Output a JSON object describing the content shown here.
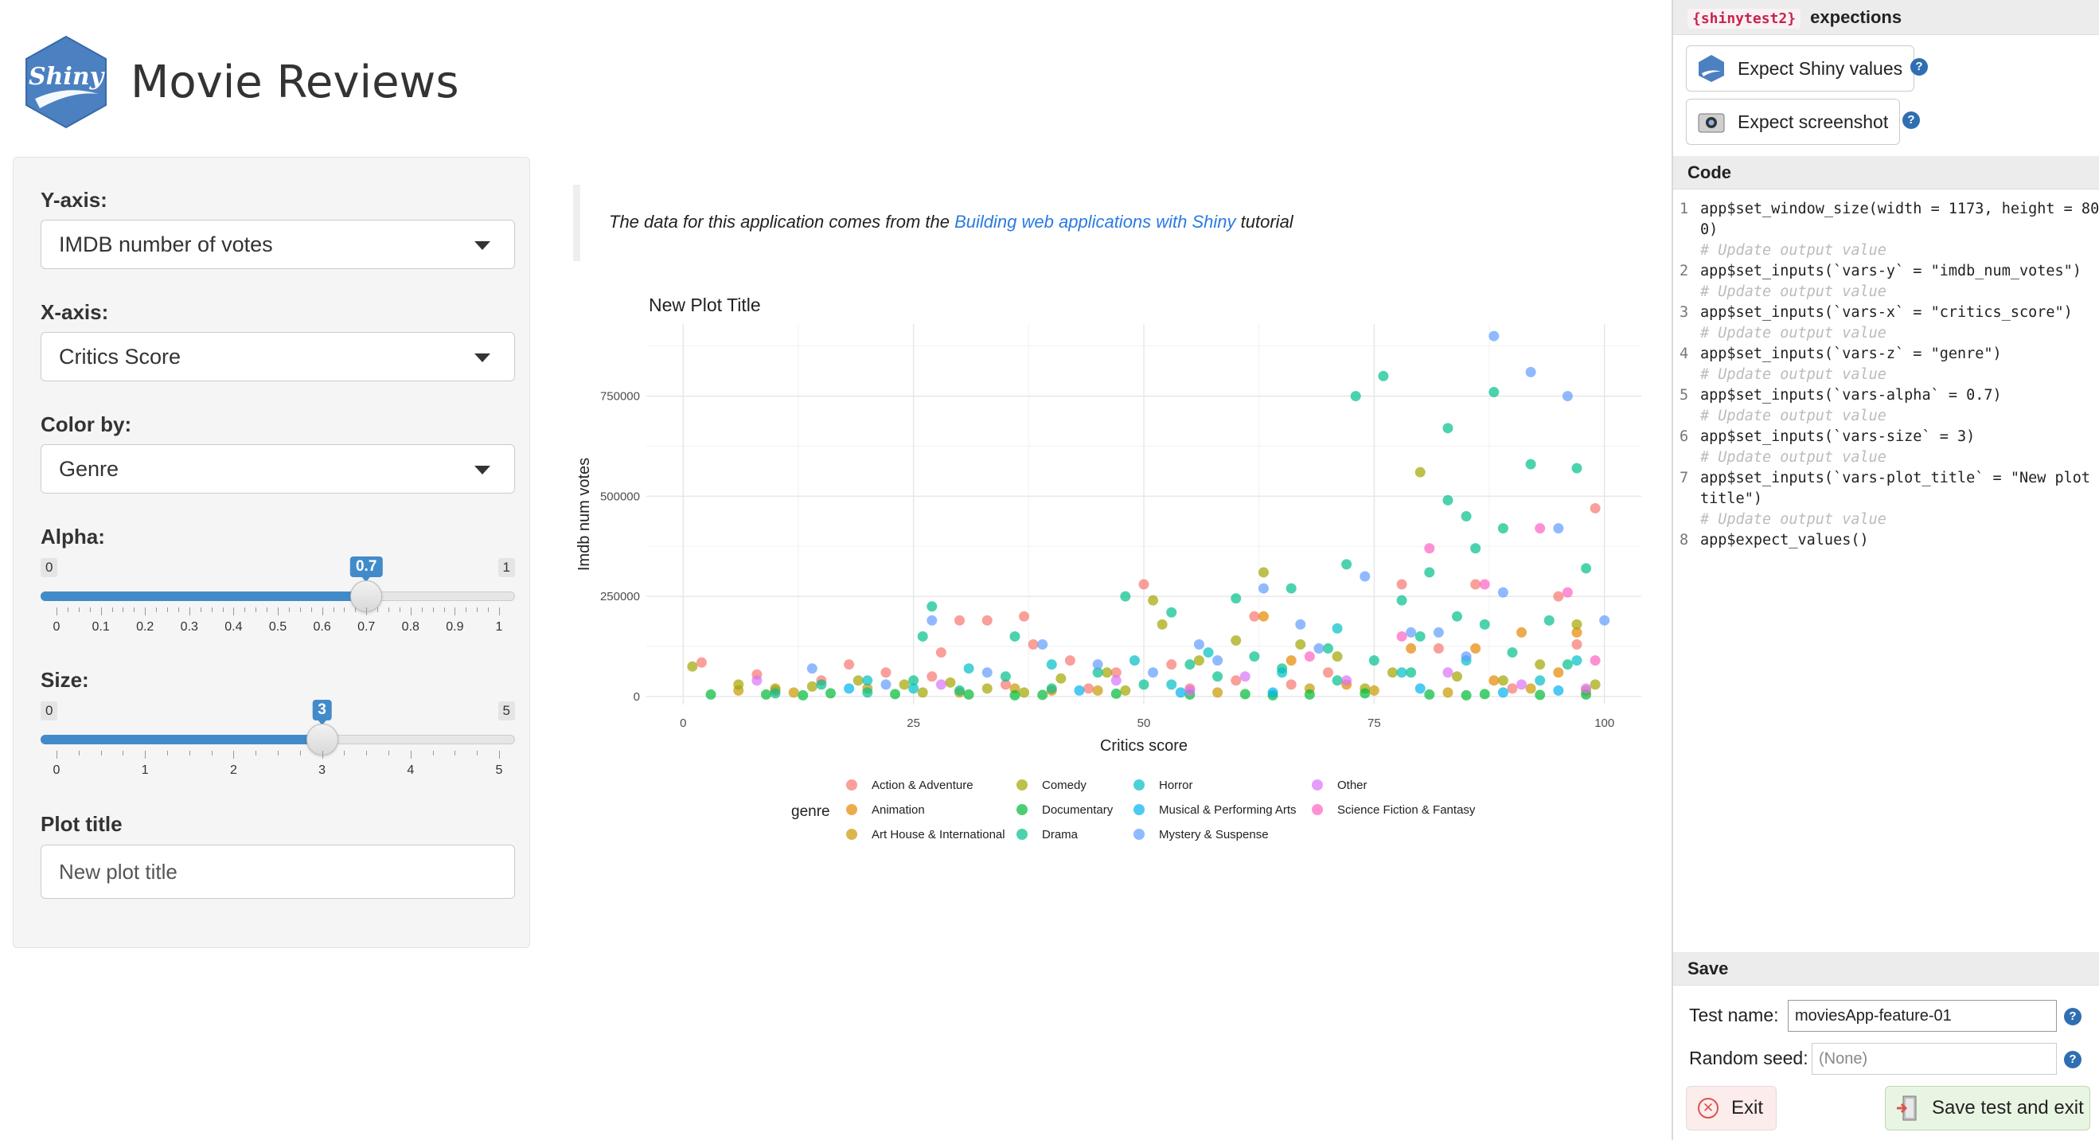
{
  "header": {
    "logo_text": "Shiny",
    "title": "Movie Reviews"
  },
  "sidebar": {
    "yaxis": {
      "label": "Y-axis:",
      "value": "IMDB number of votes"
    },
    "xaxis": {
      "label": "X-axis:",
      "value": "Critics Score"
    },
    "color": {
      "label": "Color by:",
      "value": "Genre"
    },
    "alpha": {
      "label": "Alpha:",
      "min": "0",
      "max": "1",
      "value": "0.7",
      "fraction": 0.7,
      "ticks": [
        "0",
        "0.1",
        "0.2",
        "0.3",
        "0.4",
        "0.5",
        "0.6",
        "0.7",
        "0.8",
        "0.9",
        "1"
      ]
    },
    "size": {
      "label": "Size:",
      "min": "0",
      "max": "5",
      "value": "3",
      "fraction": 0.6,
      "ticks": [
        "0",
        "1",
        "2",
        "3",
        "4",
        "5"
      ]
    },
    "plot_title": {
      "label": "Plot title",
      "value": "New plot title"
    }
  },
  "main": {
    "note_prefix": "The data for this application comes from the ",
    "note_link": "Building web applications with Shiny",
    "note_suffix": " tutorial"
  },
  "chart_data": {
    "type": "scatter",
    "title": "New Plot Title",
    "xlabel": "Critics score",
    "ylabel": "Imdb num votes",
    "xlim": [
      -4,
      104
    ],
    "ylim": [
      -20000,
      930000
    ],
    "x_ticks": [
      0,
      25,
      50,
      75,
      100
    ],
    "y_ticks": [
      0,
      250000,
      500000,
      750000
    ],
    "x_tick_labels": [
      "0",
      "25",
      "50",
      "75",
      "100"
    ],
    "y_tick_labels": [
      "0",
      "250000",
      "500000",
      "750000"
    ],
    "grid": true,
    "legend_title": "genre",
    "legend_position": "bottom",
    "series": [
      {
        "name": "Action & Adventure",
        "color": "#F8766D",
        "points": [
          [
            2,
            85000
          ],
          [
            8,
            55000
          ],
          [
            15,
            40000
          ],
          [
            18,
            80000
          ],
          [
            22,
            60000
          ],
          [
            28,
            110000
          ],
          [
            30,
            190000
          ],
          [
            33,
            190000
          ],
          [
            37,
            200000
          ],
          [
            38,
            130000
          ],
          [
            42,
            90000
          ],
          [
            47,
            60000
          ],
          [
            50,
            280000
          ],
          [
            53,
            80000
          ],
          [
            62,
            200000
          ],
          [
            70,
            60000
          ],
          [
            78,
            280000
          ],
          [
            82,
            120000
          ],
          [
            86,
            280000
          ],
          [
            95,
            250000
          ],
          [
            99,
            470000
          ],
          [
            97,
            130000
          ],
          [
            60,
            40000
          ],
          [
            44,
            20000
          ],
          [
            10,
            15000
          ],
          [
            27,
            50000
          ],
          [
            35,
            30000
          ],
          [
            55,
            20000
          ],
          [
            66,
            30000
          ],
          [
            90,
            20000
          ]
        ]
      },
      {
        "name": "Animation",
        "color": "#E58700",
        "points": [
          [
            40,
            15000
          ],
          [
            63,
            200000
          ],
          [
            66,
            90000
          ],
          [
            79,
            120000
          ],
          [
            86,
            120000
          ],
          [
            91,
            160000
          ],
          [
            97,
            160000
          ],
          [
            88,
            40000
          ],
          [
            72,
            30000
          ],
          [
            95,
            60000
          ]
        ]
      },
      {
        "name": "Art House & International",
        "color": "#C99800",
        "points": [
          [
            6,
            15000
          ],
          [
            12,
            10000
          ],
          [
            20,
            20000
          ],
          [
            30,
            10000
          ],
          [
            45,
            15000
          ],
          [
            58,
            10000
          ],
          [
            68,
            20000
          ],
          [
            75,
            15000
          ],
          [
            83,
            10000
          ],
          [
            92,
            20000
          ],
          [
            98,
            15000
          ],
          [
            36,
            20000
          ]
        ]
      },
      {
        "name": "Comedy",
        "color": "#A3A500",
        "points": [
          [
            1,
            75000
          ],
          [
            6,
            30000
          ],
          [
            10,
            20000
          ],
          [
            14,
            25000
          ],
          [
            19,
            40000
          ],
          [
            24,
            30000
          ],
          [
            29,
            35000
          ],
          [
            33,
            20000
          ],
          [
            41,
            45000
          ],
          [
            46,
            60000
          ],
          [
            51,
            240000
          ],
          [
            52,
            180000
          ],
          [
            56,
            90000
          ],
          [
            60,
            140000
          ],
          [
            63,
            310000
          ],
          [
            67,
            130000
          ],
          [
            71,
            100000
          ],
          [
            77,
            60000
          ],
          [
            80,
            560000
          ],
          [
            84,
            50000
          ],
          [
            89,
            40000
          ],
          [
            93,
            80000
          ],
          [
            97,
            180000
          ],
          [
            99,
            30000
          ],
          [
            48,
            15000
          ],
          [
            26,
            10000
          ],
          [
            37,
            10000
          ],
          [
            74,
            20000
          ]
        ]
      },
      {
        "name": "Documentary",
        "color": "#00BA38",
        "points": [
          [
            3,
            5000
          ],
          [
            9,
            5000
          ],
          [
            16,
            8000
          ],
          [
            23,
            6000
          ],
          [
            31,
            5000
          ],
          [
            39,
            4000
          ],
          [
            47,
            7000
          ],
          [
            55,
            5000
          ],
          [
            61,
            6000
          ],
          [
            68,
            5000
          ],
          [
            74,
            8000
          ],
          [
            81,
            5000
          ],
          [
            87,
            6000
          ],
          [
            93,
            4000
          ],
          [
            98,
            5000
          ],
          [
            13,
            3000
          ],
          [
            36,
            3000
          ],
          [
            64,
            3000
          ],
          [
            85,
            3000
          ]
        ]
      },
      {
        "name": "Drama",
        "color": "#00C08B",
        "points": [
          [
            27,
            225000
          ],
          [
            26,
            150000
          ],
          [
            36,
            150000
          ],
          [
            48,
            250000
          ],
          [
            53,
            210000
          ],
          [
            60,
            245000
          ],
          [
            66,
            270000
          ],
          [
            72,
            330000
          ],
          [
            73,
            750000
          ],
          [
            76,
            800000
          ],
          [
            78,
            240000
          ],
          [
            81,
            310000
          ],
          [
            83,
            670000
          ],
          [
            83,
            490000
          ],
          [
            85,
            450000
          ],
          [
            86,
            370000
          ],
          [
            88,
            760000
          ],
          [
            89,
            420000
          ],
          [
            92,
            580000
          ],
          [
            97,
            570000
          ],
          [
            98,
            320000
          ],
          [
            94,
            190000
          ],
          [
            87,
            180000
          ],
          [
            80,
            150000
          ],
          [
            70,
            120000
          ],
          [
            62,
            100000
          ],
          [
            55,
            80000
          ],
          [
            45,
            60000
          ],
          [
            35,
            50000
          ],
          [
            25,
            40000
          ],
          [
            15,
            30000
          ],
          [
            58,
            50000
          ],
          [
            65,
            70000
          ],
          [
            75,
            90000
          ],
          [
            90,
            110000
          ],
          [
            96,
            80000
          ],
          [
            84,
            200000
          ],
          [
            79,
            60000
          ],
          [
            71,
            40000
          ],
          [
            50,
            30000
          ],
          [
            40,
            20000
          ],
          [
            30,
            15000
          ],
          [
            20,
            10000
          ],
          [
            10,
            8000
          ]
        ]
      },
      {
        "name": "Horror",
        "color": "#00BFC4",
        "points": [
          [
            20,
            40000
          ],
          [
            31,
            70000
          ],
          [
            40,
            80000
          ],
          [
            49,
            90000
          ],
          [
            57,
            110000
          ],
          [
            65,
            60000
          ],
          [
            71,
            170000
          ],
          [
            78,
            60000
          ],
          [
            85,
            90000
          ],
          [
            93,
            40000
          ],
          [
            97,
            90000
          ],
          [
            53,
            30000
          ],
          [
            25,
            20000
          ]
        ]
      },
      {
        "name": "Musical & Performing Arts",
        "color": "#00B4F0",
        "points": [
          [
            18,
            20000
          ],
          [
            43,
            15000
          ],
          [
            64,
            10000
          ],
          [
            80,
            20000
          ],
          [
            89,
            10000
          ],
          [
            95,
            15000
          ],
          [
            54,
            10000
          ]
        ]
      },
      {
        "name": "Mystery & Suspense",
        "color": "#619CFF",
        "points": [
          [
            14,
            70000
          ],
          [
            27,
            190000
          ],
          [
            39,
            130000
          ],
          [
            45,
            80000
          ],
          [
            51,
            60000
          ],
          [
            56,
            130000
          ],
          [
            63,
            270000
          ],
          [
            67,
            180000
          ],
          [
            74,
            300000
          ],
          [
            79,
            160000
          ],
          [
            85,
            100000
          ],
          [
            88,
            900000
          ],
          [
            92,
            810000
          ],
          [
            96,
            750000
          ],
          [
            95,
            420000
          ],
          [
            89,
            260000
          ],
          [
            82,
            160000
          ],
          [
            69,
            120000
          ],
          [
            58,
            90000
          ],
          [
            33,
            60000
          ],
          [
            22,
            30000
          ],
          [
            100,
            190000
          ]
        ]
      },
      {
        "name": "Other",
        "color": "#DB72FB",
        "points": [
          [
            8,
            40000
          ],
          [
            28,
            30000
          ],
          [
            47,
            40000
          ],
          [
            61,
            50000
          ],
          [
            72,
            40000
          ],
          [
            83,
            60000
          ],
          [
            91,
            30000
          ],
          [
            98,
            20000
          ],
          [
            55,
            15000
          ]
        ]
      },
      {
        "name": "Science Fiction & Fantasy",
        "color": "#FF61C3",
        "points": [
          [
            81,
            370000
          ],
          [
            87,
            280000
          ],
          [
            96,
            260000
          ],
          [
            93,
            420000
          ],
          [
            78,
            150000
          ],
          [
            68,
            100000
          ],
          [
            99,
            90000
          ]
        ]
      }
    ]
  },
  "panel": {
    "tag": "{shinytest2}",
    "heading": "expections",
    "expect_values": "Expect Shiny values",
    "expect_screenshot": "Expect screenshot",
    "help": "?",
    "code_heading": "Code",
    "code_lines": [
      {
        "n": "1",
        "text": "app$set_window_size(width = 1173, height = 80",
        "cont": "0)"
      },
      {
        "n": "",
        "comment": "# Update output value"
      },
      {
        "n": "2",
        "text": "app$set_inputs(`vars-y` = \"imdb_num_votes\")"
      },
      {
        "n": "",
        "comment": "# Update output value"
      },
      {
        "n": "3",
        "text": "app$set_inputs(`vars-x` = \"critics_score\")"
      },
      {
        "n": "",
        "comment": "# Update output value"
      },
      {
        "n": "4",
        "text": "app$set_inputs(`vars-z` = \"genre\")"
      },
      {
        "n": "",
        "comment": "# Update output value"
      },
      {
        "n": "5",
        "text": "app$set_inputs(`vars-alpha` = 0.7)"
      },
      {
        "n": "",
        "comment": "# Update output value"
      },
      {
        "n": "6",
        "text": "app$set_inputs(`vars-size` = 3)"
      },
      {
        "n": "",
        "comment": "# Update output value"
      },
      {
        "n": "7",
        "text": "app$set_inputs(`vars-plot_title` = \"New plot",
        "cont": "title\")"
      },
      {
        "n": "",
        "comment": "# Update output value"
      },
      {
        "n": "8",
        "text": "app$expect_values()"
      }
    ],
    "save_heading": "Save",
    "test_name_label": "Test name:",
    "test_name_value": "moviesApp-feature-01",
    "seed_label": "Random seed:",
    "seed_placeholder": "(None)",
    "exit_label": "Exit",
    "save_label": "Save test and exit"
  }
}
